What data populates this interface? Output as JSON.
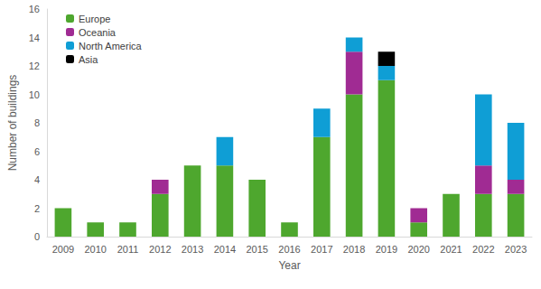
{
  "chart_data": {
    "type": "bar",
    "stacked": true,
    "x_label": "Year",
    "y_label": "Number of buildings",
    "categories": [
      "2009",
      "2010",
      "2011",
      "2012",
      "2013",
      "2014",
      "2015",
      "2016",
      "2017",
      "2018",
      "2019",
      "2020",
      "2021",
      "2022",
      "2023"
    ],
    "series": [
      {
        "name": "Europe",
        "color": "#4ea72e",
        "values": [
          2,
          1,
          1,
          3,
          5,
          5,
          4,
          1,
          7,
          10,
          11,
          1,
          3,
          3,
          3
        ]
      },
      {
        "name": "Oceania",
        "color": "#a02b93",
        "values": [
          0,
          0,
          0,
          1,
          0,
          0,
          0,
          0,
          0,
          3,
          0,
          1,
          0,
          2,
          1
        ]
      },
      {
        "name": "North America",
        "color": "#0f9ed5",
        "values": [
          0,
          0,
          0,
          0,
          0,
          2,
          0,
          0,
          2,
          1,
          1,
          0,
          0,
          5,
          4
        ]
      },
      {
        "name": "Asia",
        "color": "#000000",
        "values": [
          0,
          0,
          0,
          0,
          0,
          0,
          0,
          0,
          0,
          0,
          1,
          0,
          0,
          0,
          0
        ]
      }
    ],
    "ylim": [
      0,
      16
    ],
    "yticks": [
      0,
      2,
      4,
      6,
      8,
      10,
      12,
      14,
      16
    ],
    "grid": false,
    "legend": "upper left"
  }
}
